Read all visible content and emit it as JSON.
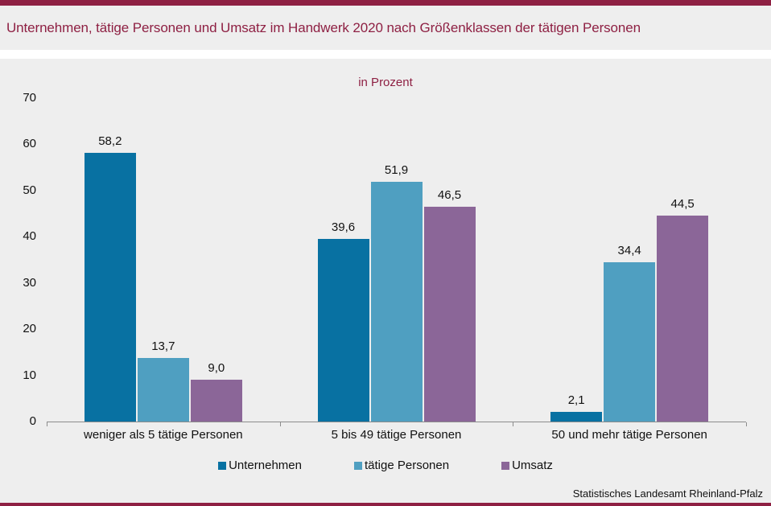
{
  "header": {
    "title": "Unternehmen, tätige Personen und Umsatz im Handwerk 2020 nach Größenklassen der tätigen Personen"
  },
  "chart_data": {
    "type": "bar",
    "subtitle": "in Prozent",
    "categories": [
      "weniger als 5 tätige Personen",
      "5 bis 49 tätige Personen",
      "50 und mehr tätige Personen"
    ],
    "series": [
      {
        "name": "Unternehmen",
        "color": "#0871a2",
        "values": [
          58.2,
          39.6,
          2.1
        ],
        "labels": [
          "58,2",
          "39,6",
          "2,1"
        ]
      },
      {
        "name": "tätige Personen",
        "color": "#4f9fc1",
        "values": [
          13.7,
          51.9,
          34.4
        ],
        "labels": [
          "13,7",
          "51,9",
          "34,4"
        ]
      },
      {
        "name": "Umsatz",
        "color": "#8b6698",
        "values": [
          9.0,
          46.5,
          44.5
        ],
        "labels": [
          "9,0",
          "46,5",
          "44,5"
        ]
      }
    ],
    "ylim": [
      0,
      70
    ],
    "yticks": [
      0,
      10,
      20,
      30,
      40,
      50,
      60,
      70
    ],
    "grid": false,
    "legend_position": "bottom"
  },
  "footer": {
    "source": "Statistisches Landesamt Rheinland-Pfalz"
  },
  "colors": {
    "accent_red": "#8e2043",
    "band_background": "#eeeeee",
    "axis": "#8c8c8c"
  }
}
